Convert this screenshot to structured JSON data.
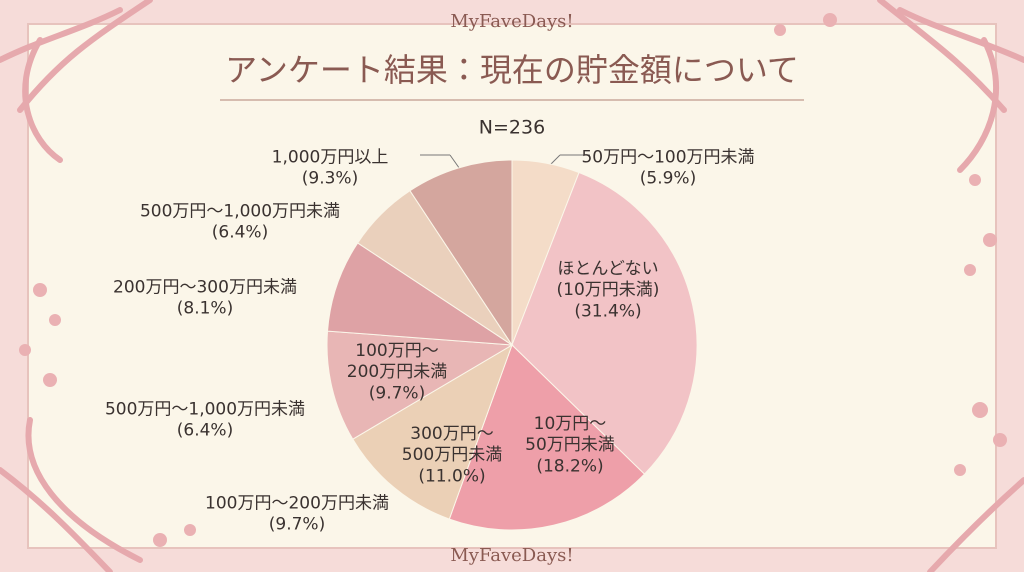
{
  "chart_data": {
    "type": "pie",
    "brand": "MyFaveDays!",
    "title": "アンケート結果：現在の貯金額について",
    "subtitle": "N=236",
    "categories": [
      "50万円〜100万円未満",
      "ほとんどない\n(10万円未満)",
      "10万円〜\n50万円未満",
      "300万円〜\n500万円未満",
      "100万円〜\n200万円未満",
      "200万円〜300万円未満",
      "500万円〜1,000万円未満",
      "1,000万円以上"
    ],
    "values": [
      5.9,
      31.4,
      18.2,
      11.0,
      9.7,
      8.1,
      6.4,
      9.3
    ],
    "value_labels": [
      "(5.9%)",
      "(31.4%)",
      "(18.2%)",
      "(11.0%)",
      "(9.7%)",
      "(8.1%)",
      "(6.4%)",
      "(9.3%)"
    ],
    "colors": [
      "#f4dcc8",
      "#f2c3c6",
      "#ee9fa9",
      "#ebd0b6",
      "#e8b6b5",
      "#dea2a5",
      "#ead0bc",
      "#d4a69e"
    ],
    "annotations": [
      "500万円〜1,000万円未満\n(6.4%)",
      "100万円〜200万円未満\n(9.7%)"
    ]
  }
}
